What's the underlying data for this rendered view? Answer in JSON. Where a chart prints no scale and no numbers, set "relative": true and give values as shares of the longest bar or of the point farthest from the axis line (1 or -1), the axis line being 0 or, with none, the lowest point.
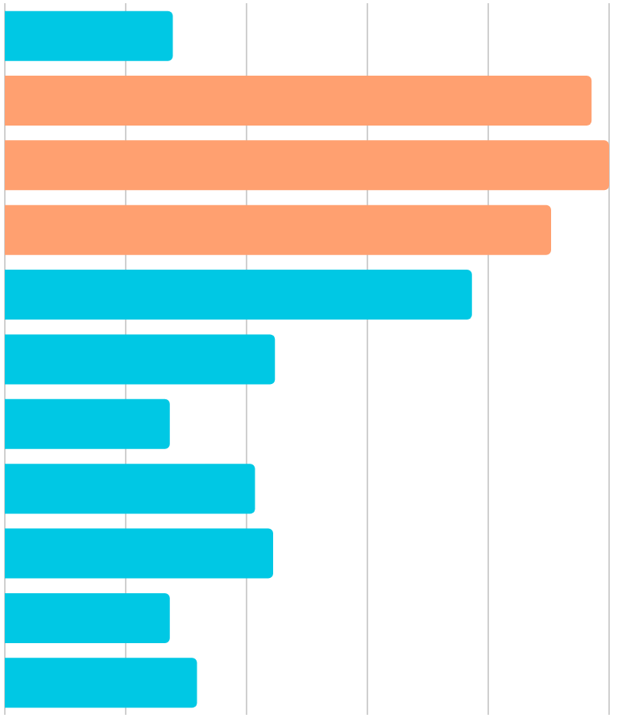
{
  "chart_data": {
    "type": "bar",
    "orientation": "horizontal",
    "relative": true,
    "grid": "x",
    "categories": [
      null,
      null,
      null,
      null,
      null,
      null,
      null,
      null,
      null,
      null,
      null
    ],
    "values": [
      0.278,
      0.971,
      1,
      0.904,
      0.773,
      0.447,
      0.273,
      0.414,
      0.444,
      0.273,
      0.318
    ],
    "colors": [
      "#00c8e4",
      "#ffa070",
      "#ffa070",
      "#ffa070",
      "#00c8e4",
      "#00c8e4",
      "#00c8e4",
      "#00c8e4",
      "#00c8e4",
      "#00c8e4",
      "#00c8e4"
    ]
  }
}
